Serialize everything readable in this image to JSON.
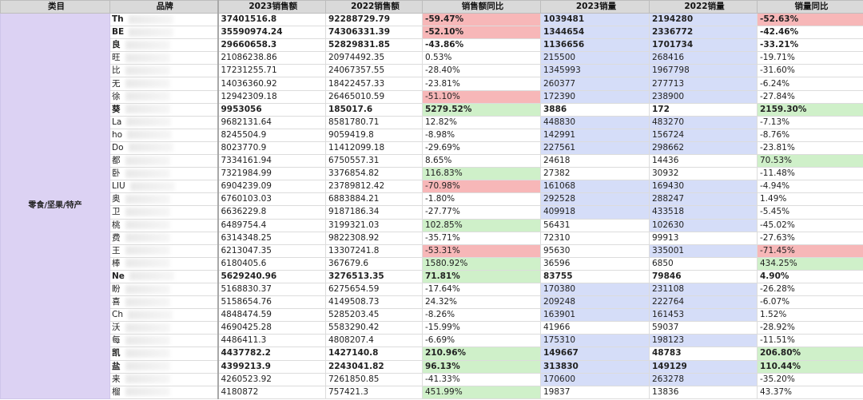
{
  "headers": [
    "类目",
    "品牌",
    "2023销售额",
    "2022销售额",
    "销售额同比",
    "2023销量",
    "2022销量",
    "销量同比"
  ],
  "category": "零食/坚果/特产",
  "rows": [
    {
      "brand": "Th",
      "bold": true,
      "s23": "37401516.8",
      "s22": "92288729.79",
      "sy": "-59.47%",
      "syc": "red",
      "q23": "1039481",
      "q23c": "blue",
      "q22": "2194280",
      "q22c": "blue",
      "qy": "-52.63%",
      "qyc": "red"
    },
    {
      "brand": "BE",
      "bold": true,
      "s23": "35590974.24",
      "s22": "74306331.39",
      "sy": "-52.10%",
      "syc": "red",
      "q23": "1344654",
      "q23c": "blue",
      "q22": "2336772",
      "q22c": "blue",
      "qy": "-42.46%",
      "qyc": ""
    },
    {
      "brand": "良",
      "bold": true,
      "s23": "29660658.3",
      "s22": "52829831.85",
      "sy": "-43.86%",
      "syc": "",
      "q23": "1136656",
      "q23c": "blue",
      "q22": "1701734",
      "q22c": "blue",
      "qy": "-33.21%",
      "qyc": ""
    },
    {
      "brand": "旺",
      "bold": false,
      "s23": "21086238.86",
      "s22": "20974492.35",
      "sy": "0.53%",
      "syc": "",
      "q23": "215500",
      "q23c": "blue",
      "q22": "268416",
      "q22c": "blue",
      "qy": "-19.71%",
      "qyc": ""
    },
    {
      "brand": "比",
      "bold": false,
      "s23": "17231255.71",
      "s22": "24067357.55",
      "sy": "-28.40%",
      "syc": "",
      "q23": "1345993",
      "q23c": "blue",
      "q22": "1967798",
      "q22c": "blue",
      "qy": "-31.60%",
      "qyc": ""
    },
    {
      "brand": "无",
      "bold": false,
      "s23": "14036360.92",
      "s22": "18422457.33",
      "sy": "-23.81%",
      "syc": "",
      "q23": "260377",
      "q23c": "blue",
      "q22": "277713",
      "q22c": "blue",
      "qy": "-6.24%",
      "qyc": ""
    },
    {
      "brand": "徐",
      "bold": false,
      "s23": "12942309.18",
      "s22": "26465010.59",
      "sy": "-51.10%",
      "syc": "red",
      "q23": "172390",
      "q23c": "blue",
      "q22": "238900",
      "q22c": "blue",
      "qy": "-27.84%",
      "qyc": ""
    },
    {
      "brand": "葵",
      "bold": true,
      "s23": "9953056",
      "s22": "185017.6",
      "sy": "5279.52%",
      "syc": "green",
      "q23": "3886",
      "q23c": "",
      "q22": "172",
      "q22c": "",
      "qy": "2159.30%",
      "qyc": "green"
    },
    {
      "brand": "La",
      "bold": false,
      "s23": "9682131.64",
      "s22": "8581780.71",
      "sy": "12.82%",
      "syc": "",
      "q23": "448830",
      "q23c": "blue",
      "q22": "483270",
      "q22c": "blue",
      "qy": "-7.13%",
      "qyc": ""
    },
    {
      "brand": "ho",
      "bold": false,
      "s23": "8245504.9",
      "s22": "9059419.8",
      "sy": "-8.98%",
      "syc": "",
      "q23": "142991",
      "q23c": "blue",
      "q22": "156724",
      "q22c": "blue",
      "qy": "-8.76%",
      "qyc": ""
    },
    {
      "brand": "Do",
      "bold": false,
      "s23": "8023770.9",
      "s22": "11412099.18",
      "sy": "-29.69%",
      "syc": "",
      "q23": "227561",
      "q23c": "blue",
      "q22": "298662",
      "q22c": "blue",
      "qy": "-23.81%",
      "qyc": ""
    },
    {
      "brand": "都",
      "bold": false,
      "s23": "7334161.94",
      "s22": "6750557.31",
      "sy": "8.65%",
      "syc": "",
      "q23": "24618",
      "q23c": "",
      "q22": "14436",
      "q22c": "",
      "qy": "70.53%",
      "qyc": "green"
    },
    {
      "brand": "卧",
      "bold": false,
      "s23": "7321984.99",
      "s22": "3376854.82",
      "sy": "116.83%",
      "syc": "green",
      "q23": "27382",
      "q23c": "",
      "q22": "30932",
      "q22c": "",
      "qy": "-11.48%",
      "qyc": ""
    },
    {
      "brand": "LIU",
      "bold": false,
      "s23": "6904239.09",
      "s22": "23789812.42",
      "sy": "-70.98%",
      "syc": "red",
      "q23": "161068",
      "q23c": "blue",
      "q22": "169430",
      "q22c": "blue",
      "qy": "-4.94%",
      "qyc": ""
    },
    {
      "brand": "奥",
      "bold": false,
      "s23": "6760103.03",
      "s22": "6883884.21",
      "sy": "-1.80%",
      "syc": "",
      "q23": "292528",
      "q23c": "blue",
      "q22": "288247",
      "q22c": "blue",
      "qy": "1.49%",
      "qyc": ""
    },
    {
      "brand": "卫",
      "bold": false,
      "s23": "6636229.8",
      "s22": "9187186.34",
      "sy": "-27.77%",
      "syc": "",
      "q23": "409918",
      "q23c": "blue",
      "q22": "433518",
      "q22c": "blue",
      "qy": "-5.45%",
      "qyc": ""
    },
    {
      "brand": "桃",
      "bold": false,
      "s23": "6489754.4",
      "s22": "3199321.03",
      "sy": "102.85%",
      "syc": "green",
      "q23": "56431",
      "q23c": "",
      "q22": "102630",
      "q22c": "blue",
      "qy": "-45.02%",
      "qyc": ""
    },
    {
      "brand": "费",
      "bold": false,
      "s23": "6314348.25",
      "s22": "9822308.92",
      "sy": "-35.71%",
      "syc": "",
      "q23": "72310",
      "q23c": "",
      "q22": "99913",
      "q22c": "",
      "qy": "-27.63%",
      "qyc": ""
    },
    {
      "brand": "王",
      "bold": false,
      "s23": "6213047.35",
      "s22": "13307241.8",
      "sy": "-53.31%",
      "syc": "red",
      "q23": "95630",
      "q23c": "",
      "q22": "335001",
      "q22c": "blue",
      "qy": "-71.45%",
      "qyc": "red"
    },
    {
      "brand": "棒",
      "bold": false,
      "s23": "6180405.6",
      "s22": "367679.6",
      "sy": "1580.92%",
      "syc": "green",
      "q23": "36596",
      "q23c": "",
      "q22": "6850",
      "q22c": "",
      "qy": "434.25%",
      "qyc": "green"
    },
    {
      "brand": "Ne",
      "bold": true,
      "s23": "5629240.96",
      "s22": "3276513.35",
      "sy": "71.81%",
      "syc": "green",
      "q23": "83755",
      "q23c": "",
      "q22": "79846",
      "q22c": "",
      "qy": "4.90%",
      "qyc": ""
    },
    {
      "brand": "盼",
      "bold": false,
      "s23": "5168830.37",
      "s22": "6275654.59",
      "sy": "-17.64%",
      "syc": "",
      "q23": "170380",
      "q23c": "blue",
      "q22": "231108",
      "q22c": "blue",
      "qy": "-26.28%",
      "qyc": ""
    },
    {
      "brand": "喜",
      "bold": false,
      "s23": "5158654.76",
      "s22": "4149508.73",
      "sy": "24.32%",
      "syc": "",
      "q23": "209248",
      "q23c": "blue",
      "q22": "222764",
      "q22c": "blue",
      "qy": "-6.07%",
      "qyc": ""
    },
    {
      "brand": "Ch",
      "bold": false,
      "s23": "4848474.59",
      "s22": "5285203.45",
      "sy": "-8.26%",
      "syc": "",
      "q23": "163901",
      "q23c": "blue",
      "q22": "161453",
      "q22c": "blue",
      "qy": "1.52%",
      "qyc": ""
    },
    {
      "brand": "沃",
      "bold": false,
      "s23": "4690425.28",
      "s22": "5583290.42",
      "sy": "-15.99%",
      "syc": "",
      "q23": "41966",
      "q23c": "",
      "q22": "59037",
      "q22c": "",
      "qy": "-28.92%",
      "qyc": ""
    },
    {
      "brand": "每",
      "bold": false,
      "s23": "4486411.3",
      "s22": "4808207.4",
      "sy": "-6.69%",
      "syc": "",
      "q23": "175310",
      "q23c": "blue",
      "q22": "198123",
      "q22c": "blue",
      "qy": "-11.51%",
      "qyc": ""
    },
    {
      "brand": "凯",
      "bold": true,
      "s23": "4437782.2",
      "s22": "1427140.8",
      "sy": "210.96%",
      "syc": "green",
      "q23": "149667",
      "q23c": "blue",
      "q22": "48783",
      "q22c": "",
      "qy": "206.80%",
      "qyc": "green"
    },
    {
      "brand": "盐",
      "bold": true,
      "s23": "4399213.9",
      "s22": "2243041.82",
      "sy": "96.13%",
      "syc": "green",
      "q23": "313830",
      "q23c": "blue",
      "q22": "149129",
      "q22c": "blue",
      "qy": "110.44%",
      "qyc": "green"
    },
    {
      "brand": "来",
      "bold": false,
      "s23": "4260523.92",
      "s22": "7261850.85",
      "sy": "-41.33%",
      "syc": "",
      "q23": "170600",
      "q23c": "blue",
      "q22": "263278",
      "q22c": "blue",
      "qy": "-35.20%",
      "qyc": ""
    },
    {
      "brand": "榴",
      "bold": false,
      "s23": "4180872",
      "s22": "757421.3",
      "sy": "451.99%",
      "syc": "green",
      "q23": "19837",
      "q23c": "",
      "q22": "13836",
      "q22c": "",
      "qy": "43.37%",
      "qyc": ""
    }
  ]
}
